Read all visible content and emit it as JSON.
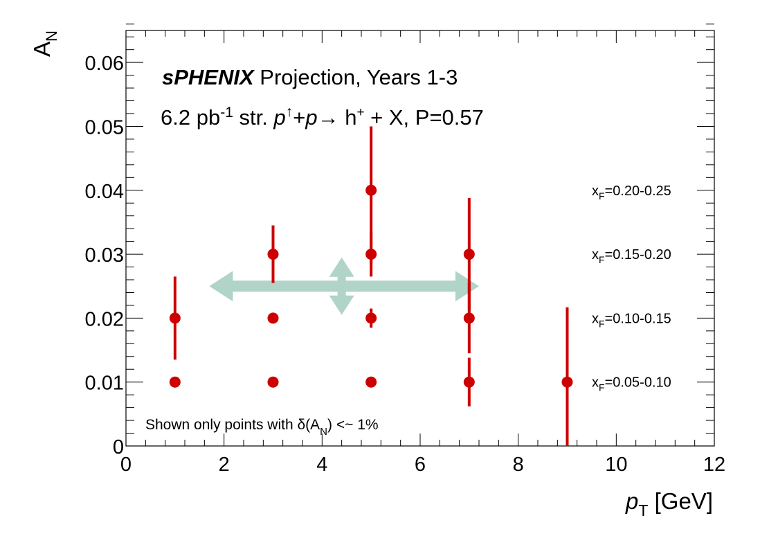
{
  "chart_data": {
    "type": "scatter",
    "title_brand": "sPHENIX",
    "title_rest": " Projection, Years 1-3",
    "subtitle": {
      "lumi": "6.2 pb",
      "lumi_exp": "-1",
      "str": " str. ",
      "p1": "p",
      "uparrow": "↑",
      "plus": "+",
      "p2": "p",
      "arrow": "→",
      "h": " h",
      "h_sup": "+",
      "rest": " + X, P=0.57"
    },
    "xlabel": {
      "main": "p",
      "sub": "T",
      "unit": " [GeV]"
    },
    "ylabel": {
      "main": "A",
      "sub": "N"
    },
    "xlim": [
      0,
      12
    ],
    "ylim": [
      0,
      0.065
    ],
    "xticks": [
      0,
      2,
      4,
      6,
      8,
      10,
      12
    ],
    "xtick_labels": [
      "0",
      "2",
      "4",
      "6",
      "8",
      "10",
      "12"
    ],
    "yticks": [
      0,
      0.01,
      0.02,
      0.03,
      0.04,
      0.05,
      0.06
    ],
    "ytick_labels": [
      "0",
      "0.01",
      "0.02",
      "0.03",
      "0.04",
      "0.05",
      "0.06"
    ],
    "note": {
      "main": "Shown only points with δ(A",
      "sub": "N",
      "rest": ") <~ 1%"
    },
    "marker_color": "#cc0000",
    "arrow_color": "#b0d4c8",
    "arrow_note": {
      "x_from": 1.7,
      "x_to": 7.2,
      "y": 0.025,
      "vx": 4.4,
      "vy_from": 0.0205,
      "vy_to": 0.0295
    },
    "series": [
      {
        "name": "x_F=0.05-0.10",
        "label_main": "x",
        "label_sub": "F",
        "label_rest": "=0.05-0.10",
        "y_offset": 0.01,
        "points": [
          {
            "x": 1,
            "y": 0.01,
            "err_low": 0,
            "err_high": 0
          },
          {
            "x": 3,
            "y": 0.01,
            "err_low": 0,
            "err_high": 0
          },
          {
            "x": 5,
            "y": 0.01,
            "err_low": 0,
            "err_high": 0
          },
          {
            "x": 7,
            "y": 0.01,
            "err_low": 0.0038,
            "err_high": 0.0038
          },
          {
            "x": 9,
            "y": 0.01,
            "err_low": 0.0117,
            "err_high": 0.0117
          }
        ]
      },
      {
        "name": "x_F=0.10-0.15",
        "label_main": "x",
        "label_sub": "F",
        "label_rest": "=0.10-0.15",
        "y_offset": 0.02,
        "points": [
          {
            "x": 1,
            "y": 0.02,
            "err_low": 0.0065,
            "err_high": 0.0065
          },
          {
            "x": 3,
            "y": 0.02,
            "err_low": 0,
            "err_high": 0
          },
          {
            "x": 5,
            "y": 0.02,
            "err_low": 0.0015,
            "err_high": 0.0015
          },
          {
            "x": 7,
            "y": 0.02,
            "err_low": 0.0055,
            "err_high": 0.0055
          }
        ]
      },
      {
        "name": "x_F=0.15-0.20",
        "label_main": "x",
        "label_sub": "F",
        "label_rest": "=0.15-0.20",
        "y_offset": 0.03,
        "points": [
          {
            "x": 3,
            "y": 0.03,
            "err_low": 0.0045,
            "err_high": 0.0045
          },
          {
            "x": 5,
            "y": 0.03,
            "err_low": 0.0035,
            "err_high": 0.0035
          },
          {
            "x": 7,
            "y": 0.03,
            "err_low": 0.0088,
            "err_high": 0.0088
          }
        ]
      },
      {
        "name": "x_F=0.20-0.25",
        "label_main": "x",
        "label_sub": "F",
        "label_rest": "=0.20-0.25",
        "y_offset": 0.04,
        "points": [
          {
            "x": 5,
            "y": 0.04,
            "err_low": 0.0115,
            "err_high": 0.01
          }
        ]
      }
    ]
  }
}
